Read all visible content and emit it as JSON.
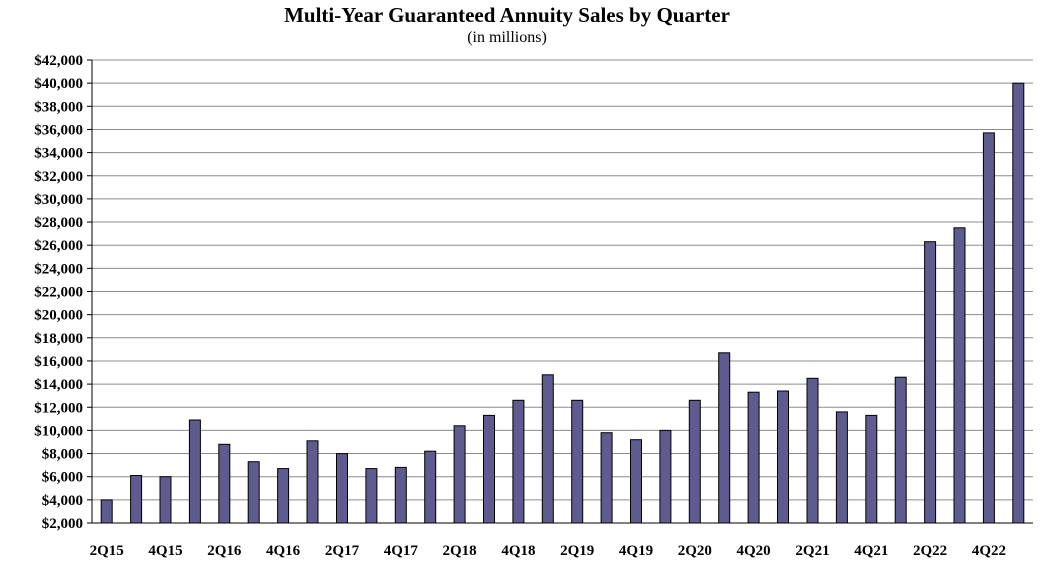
{
  "chart_data": {
    "type": "bar",
    "title": "Multi-Year Guaranteed Annuity Sales by Quarter",
    "subtitle": "(in millions)",
    "xlabel": "",
    "ylabel": "",
    "ylim": [
      2000,
      42000
    ],
    "ytick_step": 2000,
    "ytick_labels": [
      "$2,000",
      "$4,000",
      "$6,000",
      "$8,000",
      "$10,000",
      "$12,000",
      "$14,000",
      "$16,000",
      "$18,000",
      "$20,000",
      "$22,000",
      "$24,000",
      "$26,000",
      "$28,000",
      "$30,000",
      "$32,000",
      "$34,000",
      "$36,000",
      "$38,000",
      "$40,000",
      "$42,000"
    ],
    "categories": [
      "2Q15",
      "3Q15",
      "4Q15",
      "1Q16",
      "2Q16",
      "3Q16",
      "4Q16",
      "1Q17",
      "2Q17",
      "3Q17",
      "4Q17",
      "1Q18",
      "2Q18",
      "3Q18",
      "4Q18",
      "1Q19",
      "2Q19",
      "3Q19",
      "4Q19",
      "1Q20",
      "2Q20",
      "3Q20",
      "4Q20",
      "1Q21",
      "2Q21",
      "3Q21",
      "4Q21",
      "1Q22",
      "2Q22",
      "3Q22",
      "4Q22",
      "1Q23"
    ],
    "x_tick_labels": [
      "2Q15",
      "",
      "4Q15",
      "",
      "2Q16",
      "",
      "4Q16",
      "",
      "2Q17",
      "",
      "4Q17",
      "",
      "2Q18",
      "",
      "4Q18",
      "",
      "2Q19",
      "",
      "4Q19",
      "",
      "2Q20",
      "",
      "4Q20",
      "",
      "2Q21",
      "",
      "4Q21",
      "",
      "2Q22",
      "",
      "4Q22",
      ""
    ],
    "values": [
      4000,
      6100,
      6000,
      10900,
      8800,
      7300,
      6700,
      9100,
      8000,
      6700,
      6800,
      8200,
      10400,
      11300,
      12600,
      14800,
      12600,
      9800,
      9200,
      10000,
      12600,
      16700,
      13300,
      13400,
      14500,
      11600,
      11300,
      14600,
      26300,
      27500,
      35700,
      40000
    ],
    "grid": true,
    "bar_color": "#5f5b8f",
    "legend": "none"
  }
}
